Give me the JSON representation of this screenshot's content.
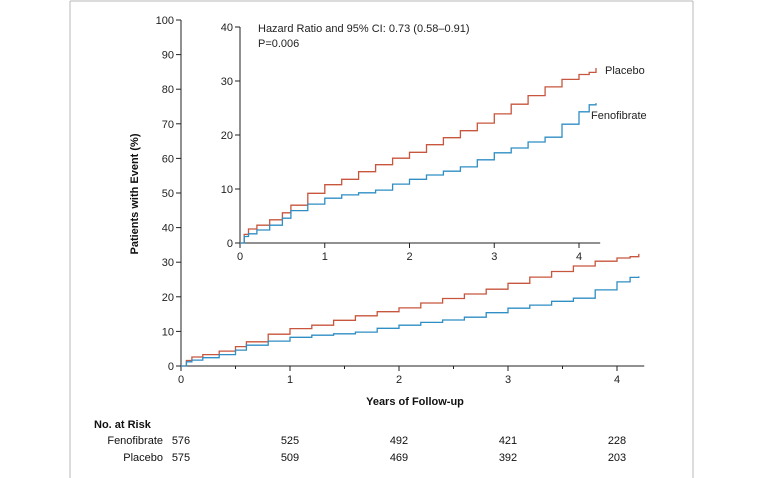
{
  "chart_data": [
    {
      "type": "line",
      "role": "main",
      "xlabel": "Years of Follow-up",
      "ylabel": "Patients with Event (%)",
      "xlim": [
        0,
        4.25
      ],
      "ylim": [
        0,
        100
      ],
      "xticks": [
        0,
        1,
        2,
        3,
        4
      ],
      "yticks": [
        0,
        10,
        20,
        30,
        40,
        50,
        60,
        70,
        80,
        90,
        100
      ],
      "series": [
        {
          "name": "Placebo",
          "color": "#c8553d",
          "points": [
            [
              0,
              0
            ],
            [
              0.05,
              1.6
            ],
            [
              0.1,
              2.6
            ],
            [
              0.2,
              3.3
            ],
            [
              0.35,
              4.3
            ],
            [
              0.5,
              5.6
            ],
            [
              0.6,
              7.0
            ],
            [
              0.8,
              9.2
            ],
            [
              1.0,
              10.8
            ],
            [
              1.2,
              11.8
            ],
            [
              1.4,
              13.2
            ],
            [
              1.6,
              14.5
            ],
            [
              1.8,
              15.7
            ],
            [
              2.0,
              16.8
            ],
            [
              2.2,
              18.2
            ],
            [
              2.4,
              19.5
            ],
            [
              2.6,
              20.8
            ],
            [
              2.8,
              22.2
            ],
            [
              3.0,
              23.9
            ],
            [
              3.2,
              25.7
            ],
            [
              3.4,
              27.3
            ],
            [
              3.6,
              28.9
            ],
            [
              3.8,
              30.3
            ],
            [
              4.0,
              31.2
            ],
            [
              4.12,
              31.6
            ],
            [
              4.2,
              32.4
            ]
          ]
        },
        {
          "name": "Fenofibrate",
          "color": "#2f8ec4",
          "points": [
            [
              0,
              0
            ],
            [
              0.05,
              1.2
            ],
            [
              0.1,
              1.7
            ],
            [
              0.2,
              2.4
            ],
            [
              0.35,
              3.3
            ],
            [
              0.5,
              4.6
            ],
            [
              0.6,
              6.0
            ],
            [
              0.8,
              7.2
            ],
            [
              1.0,
              8.3
            ],
            [
              1.2,
              8.9
            ],
            [
              1.4,
              9.3
            ],
            [
              1.6,
              9.8
            ],
            [
              1.8,
              10.9
            ],
            [
              2.0,
              11.8
            ],
            [
              2.2,
              12.6
            ],
            [
              2.4,
              13.3
            ],
            [
              2.6,
              14.1
            ],
            [
              2.8,
              15.4
            ],
            [
              3.0,
              16.7
            ],
            [
              3.2,
              17.6
            ],
            [
              3.4,
              18.7
            ],
            [
              3.6,
              19.6
            ],
            [
              3.8,
              22.0
            ],
            [
              4.0,
              24.3
            ],
            [
              4.12,
              25.6
            ],
            [
              4.2,
              25.9
            ]
          ]
        }
      ]
    },
    {
      "type": "line",
      "role": "inset",
      "xlim": [
        0,
        4.25
      ],
      "ylim": [
        0,
        40
      ],
      "xticks": [
        0,
        1,
        2,
        3,
        4
      ],
      "yticks": [
        0,
        10,
        20,
        30,
        40
      ],
      "annotation": {
        "line1": "Hazard Ratio and 95% CI: 0.73 (0.58–0.91)",
        "line2": "P=0.006"
      },
      "series": [
        {
          "name": "Placebo",
          "color": "#c8553d",
          "points": [
            [
              0,
              0
            ],
            [
              0.05,
              1.6
            ],
            [
              0.1,
              2.6
            ],
            [
              0.2,
              3.3
            ],
            [
              0.35,
              4.3
            ],
            [
              0.5,
              5.6
            ],
            [
              0.6,
              7.0
            ],
            [
              0.8,
              9.2
            ],
            [
              1.0,
              10.8
            ],
            [
              1.2,
              11.8
            ],
            [
              1.4,
              13.2
            ],
            [
              1.6,
              14.5
            ],
            [
              1.8,
              15.7
            ],
            [
              2.0,
              16.8
            ],
            [
              2.2,
              18.2
            ],
            [
              2.4,
              19.5
            ],
            [
              2.6,
              20.8
            ],
            [
              2.8,
              22.2
            ],
            [
              3.0,
              23.9
            ],
            [
              3.2,
              25.7
            ],
            [
              3.4,
              27.3
            ],
            [
              3.6,
              28.9
            ],
            [
              3.8,
              30.3
            ],
            [
              4.0,
              31.2
            ],
            [
              4.12,
              31.6
            ],
            [
              4.2,
              32.4
            ]
          ]
        },
        {
          "name": "Fenofibrate",
          "color": "#2f8ec4",
          "points": [
            [
              0,
              0
            ],
            [
              0.05,
              1.2
            ],
            [
              0.1,
              1.7
            ],
            [
              0.2,
              2.4
            ],
            [
              0.35,
              3.3
            ],
            [
              0.5,
              4.6
            ],
            [
              0.6,
              6.0
            ],
            [
              0.8,
              7.2
            ],
            [
              1.0,
              8.3
            ],
            [
              1.2,
              8.9
            ],
            [
              1.4,
              9.3
            ],
            [
              1.6,
              9.8
            ],
            [
              1.8,
              10.9
            ],
            [
              2.0,
              11.8
            ],
            [
              2.2,
              12.6
            ],
            [
              2.4,
              13.3
            ],
            [
              2.6,
              14.1
            ],
            [
              2.8,
              15.4
            ],
            [
              3.0,
              16.7
            ],
            [
              3.2,
              17.6
            ],
            [
              3.4,
              18.7
            ],
            [
              3.6,
              19.6
            ],
            [
              3.8,
              22.0
            ],
            [
              4.0,
              24.3
            ],
            [
              4.12,
              25.6
            ],
            [
              4.2,
              25.9
            ]
          ]
        }
      ]
    }
  ],
  "risk_table": {
    "header": "No. at Risk",
    "times": [
      0,
      1,
      2,
      3,
      4
    ],
    "rows": [
      {
        "label": "Fenofibrate",
        "values": [
          "576",
          "525",
          "492",
          "421",
          "228"
        ]
      },
      {
        "label": "Placebo",
        "values": [
          "575",
          "509",
          "469",
          "392",
          "203"
        ]
      }
    ]
  }
}
